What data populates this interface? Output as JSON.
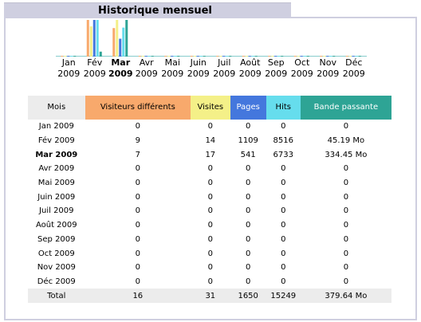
{
  "title": "Historique mensuel",
  "colors": {
    "visitors": "#f8a96c",
    "visits": "#f4f088",
    "pages": "#4477dd",
    "hits": "#66dded",
    "bandwidth": "#2ea495",
    "header_bg": "#cfcfe0"
  },
  "months": [
    {
      "month": "Jan",
      "year": "2009",
      "current": false
    },
    {
      "month": "Fév",
      "year": "2009",
      "current": false
    },
    {
      "month": "Mar",
      "year": "2009",
      "current": true
    },
    {
      "month": "Avr",
      "year": "2009",
      "current": false
    },
    {
      "month": "Mai",
      "year": "2009",
      "current": false
    },
    {
      "month": "Juin",
      "year": "2009",
      "current": false
    },
    {
      "month": "Juil",
      "year": "2009",
      "current": false
    },
    {
      "month": "Août",
      "year": "2009",
      "current": false
    },
    {
      "month": "Sep",
      "year": "2009",
      "current": false
    },
    {
      "month": "Oct",
      "year": "2009",
      "current": false
    },
    {
      "month": "Nov",
      "year": "2009",
      "current": false
    },
    {
      "month": "Déc",
      "year": "2009",
      "current": false
    }
  ],
  "table": {
    "headers": [
      "Mois",
      "Visiteurs différents",
      "Visites",
      "Pages",
      "Hits",
      "Bande passante"
    ],
    "rows": [
      {
        "mois": "Jan 2009",
        "visitors": "0",
        "visits": "0",
        "pages": "0",
        "hits": "0",
        "bandwidth": "0",
        "current": false
      },
      {
        "mois": "Fév 2009",
        "visitors": "9",
        "visits": "14",
        "pages": "1109",
        "hits": "8516",
        "bandwidth": "45.19 Mo",
        "current": false
      },
      {
        "mois": "Mar 2009",
        "visitors": "7",
        "visits": "17",
        "pages": "541",
        "hits": "6733",
        "bandwidth": "334.45 Mo",
        "current": true
      },
      {
        "mois": "Avr 2009",
        "visitors": "0",
        "visits": "0",
        "pages": "0",
        "hits": "0",
        "bandwidth": "0",
        "current": false
      },
      {
        "mois": "Mai 2009",
        "visitors": "0",
        "visits": "0",
        "pages": "0",
        "hits": "0",
        "bandwidth": "0",
        "current": false
      },
      {
        "mois": "Juin 2009",
        "visitors": "0",
        "visits": "0",
        "pages": "0",
        "hits": "0",
        "bandwidth": "0",
        "current": false
      },
      {
        "mois": "Juil 2009",
        "visitors": "0",
        "visits": "0",
        "pages": "0",
        "hits": "0",
        "bandwidth": "0",
        "current": false
      },
      {
        "mois": "Août 2009",
        "visitors": "0",
        "visits": "0",
        "pages": "0",
        "hits": "0",
        "bandwidth": "0",
        "current": false
      },
      {
        "mois": "Sep 2009",
        "visitors": "0",
        "visits": "0",
        "pages": "0",
        "hits": "0",
        "bandwidth": "0",
        "current": false
      },
      {
        "mois": "Oct 2009",
        "visitors": "0",
        "visits": "0",
        "pages": "0",
        "hits": "0",
        "bandwidth": "0",
        "current": false
      },
      {
        "mois": "Nov 2009",
        "visitors": "0",
        "visits": "0",
        "pages": "0",
        "hits": "0",
        "bandwidth": "0",
        "current": false
      },
      {
        "mois": "Déc 2009",
        "visitors": "0",
        "visits": "0",
        "pages": "0",
        "hits": "0",
        "bandwidth": "0",
        "current": false
      }
    ],
    "total": {
      "label": "Total",
      "visitors": "16",
      "visits": "31",
      "pages": "1650",
      "hits": "15249",
      "bandwidth": "379.64 Mo"
    }
  },
  "chart_data": {
    "type": "bar",
    "categories": [
      "Jan 2009",
      "Fév 2009",
      "Mar 2009",
      "Avr 2009",
      "Mai 2009",
      "Juin 2009",
      "Juil 2009",
      "Août 2009",
      "Sep 2009",
      "Oct 2009",
      "Nov 2009",
      "Déc 2009"
    ],
    "series": [
      {
        "name": "Visiteurs différents",
        "values": [
          0,
          9,
          7,
          0,
          0,
          0,
          0,
          0,
          0,
          0,
          0,
          0
        ],
        "color": "#f8a96c"
      },
      {
        "name": "Visites",
        "values": [
          0,
          14,
          17,
          0,
          0,
          0,
          0,
          0,
          0,
          0,
          0,
          0
        ],
        "color": "#f4f088"
      },
      {
        "name": "Pages",
        "values": [
          0,
          1109,
          541,
          0,
          0,
          0,
          0,
          0,
          0,
          0,
          0,
          0
        ],
        "color": "#4477dd"
      },
      {
        "name": "Hits",
        "values": [
          0,
          8516,
          6733,
          0,
          0,
          0,
          0,
          0,
          0,
          0,
          0,
          0
        ],
        "color": "#66dded"
      },
      {
        "name": "Bande passante",
        "values": [
          0,
          45.19,
          334.45,
          0,
          0,
          0,
          0,
          0,
          0,
          0,
          0,
          0
        ],
        "color": "#2ea495"
      }
    ]
  }
}
